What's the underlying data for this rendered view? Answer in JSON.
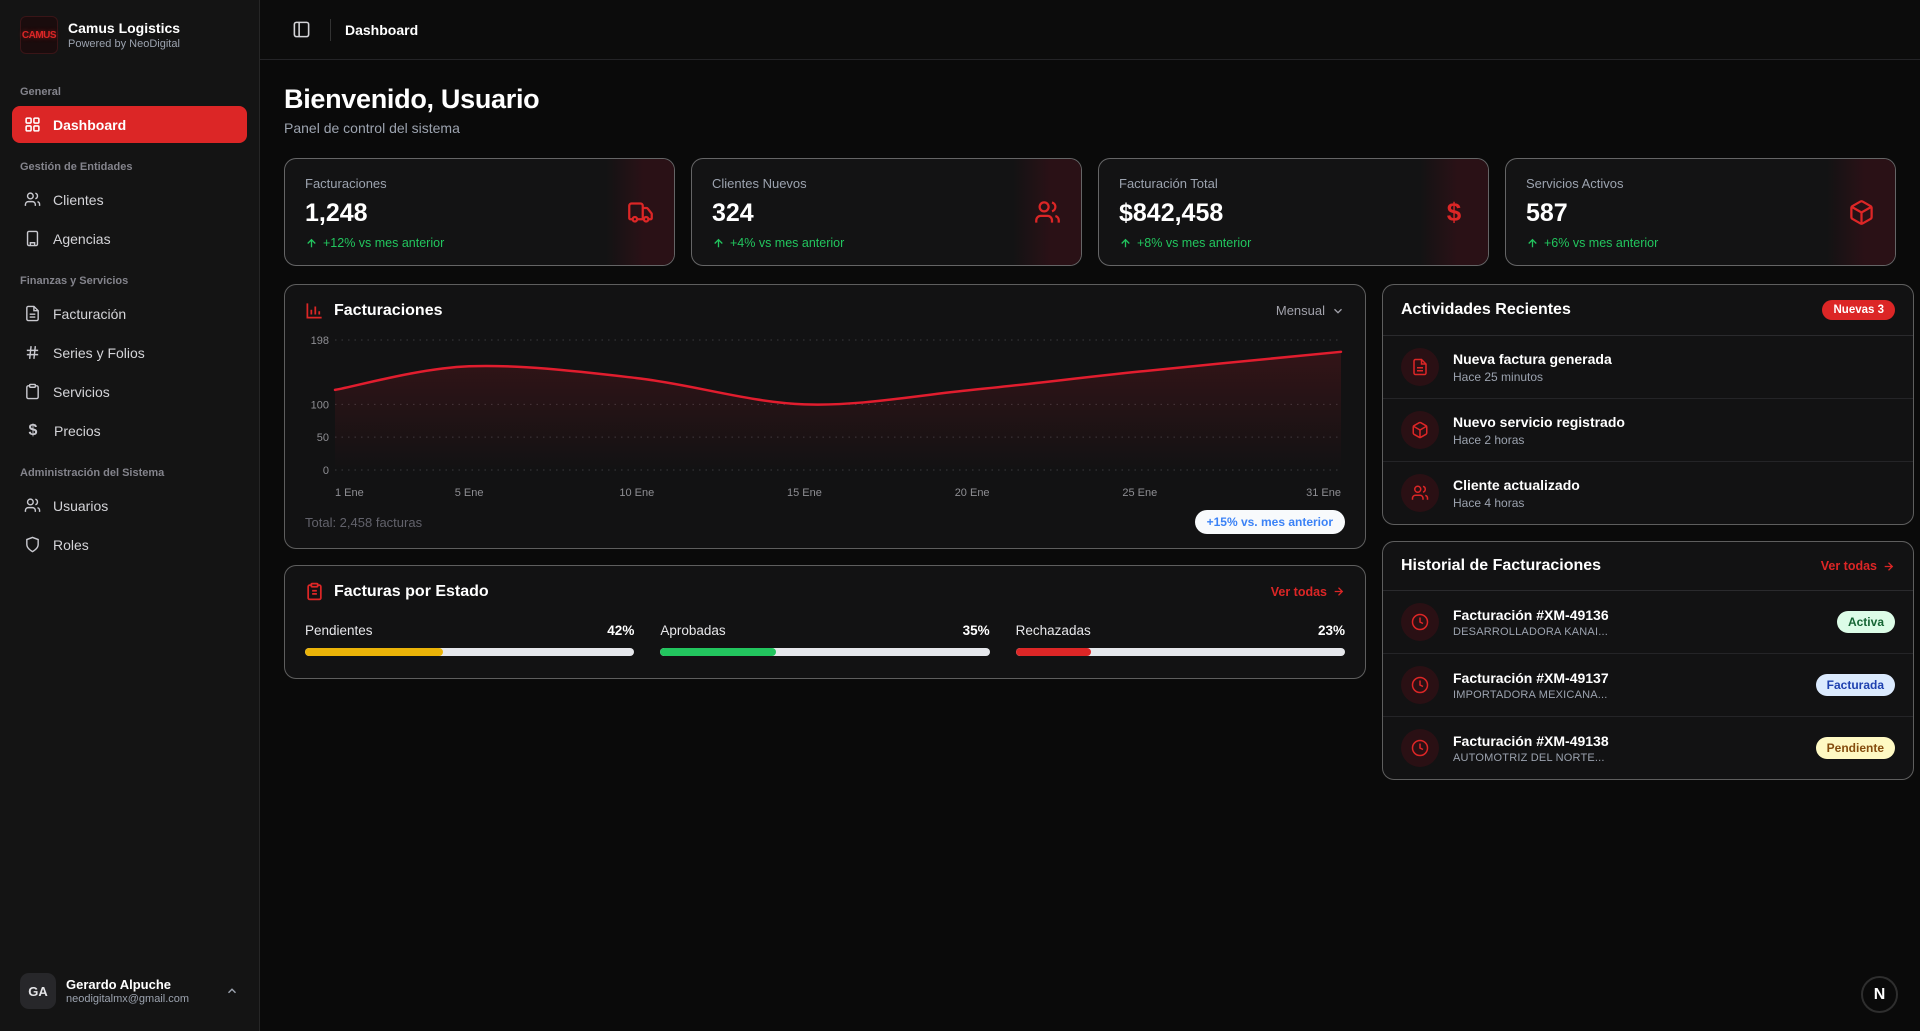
{
  "brand": {
    "logo_text": "CAMUS",
    "name": "Camus Logistics",
    "tagline": "Powered by NeoDigital"
  },
  "sidebar": {
    "sections": [
      {
        "label": "General",
        "items": [
          {
            "label": "Dashboard",
            "icon": "grid",
            "active": true
          }
        ]
      },
      {
        "label": "Gestión de Entidades",
        "items": [
          {
            "label": "Clientes",
            "icon": "users"
          },
          {
            "label": "Agencias",
            "icon": "building"
          }
        ]
      },
      {
        "label": "Finanzas y Servicios",
        "items": [
          {
            "label": "Facturación",
            "icon": "file-text"
          },
          {
            "label": "Series y Folios",
            "icon": "hash"
          },
          {
            "label": "Servicios",
            "icon": "clipboard"
          },
          {
            "label": "Precios",
            "icon": "dollar"
          }
        ]
      },
      {
        "label": "Administración del Sistema",
        "items": [
          {
            "label": "Usuarios",
            "icon": "users"
          },
          {
            "label": "Roles",
            "icon": "shield"
          }
        ]
      }
    ],
    "user": {
      "initials": "GA",
      "name": "Gerardo Alpuche",
      "email": "neodigitalmx@gmail.com"
    }
  },
  "topbar": {
    "breadcrumb": "Dashboard"
  },
  "header": {
    "title": "Bienvenido, Usuario",
    "subtitle": "Panel de control del sistema"
  },
  "stats": [
    {
      "label": "Facturaciones",
      "value": "1,248",
      "trend": "+12% vs mes anterior",
      "icon": "truck-icon"
    },
    {
      "label": "Clientes Nuevos",
      "value": "324",
      "trend": "+4% vs mes anterior",
      "icon": "users-icon"
    },
    {
      "label": "Facturación Total",
      "value": "$842,458",
      "trend": "+8% vs mes anterior",
      "icon": "dollar-icon"
    },
    {
      "label": "Servicios Activos",
      "value": "587",
      "trend": "+6% vs mes anterior",
      "icon": "package-icon"
    }
  ],
  "chart_card": {
    "title": "Facturaciones",
    "period": "Mensual",
    "total": "Total: 2,458 facturas",
    "badge": "+15% vs. mes anterior"
  },
  "chart_data": {
    "type": "line",
    "title": "Facturaciones",
    "x_days": [
      1,
      5,
      10,
      15,
      20,
      25,
      31
    ],
    "x_labels": [
      "1 Ene",
      "5 Ene",
      "10 Ene",
      "15 Ene",
      "20 Ene",
      "25 Ene",
      "31 Ene"
    ],
    "series": [
      {
        "name": "Facturaciones",
        "values": [
          122,
          158,
          140,
          100,
          122,
          150,
          180
        ]
      }
    ],
    "y_ticks": [
      0,
      50,
      100,
      198
    ],
    "ylim": [
      0,
      198
    ],
    "line_color": "#e11d2e",
    "area_fill": "red gradient fade to transparent",
    "grid": "horizontal dotted"
  },
  "status_card": {
    "title": "Facturas por Estado",
    "link": "Ver todas",
    "bars": [
      {
        "label": "Pendientes",
        "pct": "42%",
        "value": 42,
        "color": "#eab308"
      },
      {
        "label": "Aprobadas",
        "pct": "35%",
        "value": 35,
        "color": "#22c55e"
      },
      {
        "label": "Rechazadas",
        "pct": "23%",
        "value": 23,
        "color": "#dc2626"
      }
    ]
  },
  "activities": {
    "title": "Actividades Recientes",
    "badge": "Nuevas 3",
    "items": [
      {
        "title": "Nueva factura generada",
        "time": "Hace 25 minutos",
        "icon": "file-text-icon"
      },
      {
        "title": "Nuevo servicio registrado",
        "time": "Hace 2 horas",
        "icon": "package-icon"
      },
      {
        "title": "Cliente actualizado",
        "time": "Hace 4 horas",
        "icon": "users-icon"
      }
    ]
  },
  "history": {
    "title": "Historial de Facturaciones",
    "link": "Ver todas",
    "items": [
      {
        "title": "Facturación #XM-49136",
        "subtitle": "DESARROLLADORA KANAI...",
        "status": "Activa",
        "status_style": "green"
      },
      {
        "title": "Facturación #XM-49137",
        "subtitle": "IMPORTADORA MEXICANA...",
        "status": "Facturada",
        "status_style": "blue"
      },
      {
        "title": "Facturación #XM-49138",
        "subtitle": "AUTOMOTRIZ DEL NORTE...",
        "status": "Pendiente",
        "status_style": "yellow"
      }
    ]
  },
  "floating": {
    "label": "N"
  },
  "colors": {
    "accent_red": "#dc2626",
    "trend_green": "#22c55e",
    "chart_line": "#e11d2e",
    "badge_blue_text": "#3b82f6"
  }
}
